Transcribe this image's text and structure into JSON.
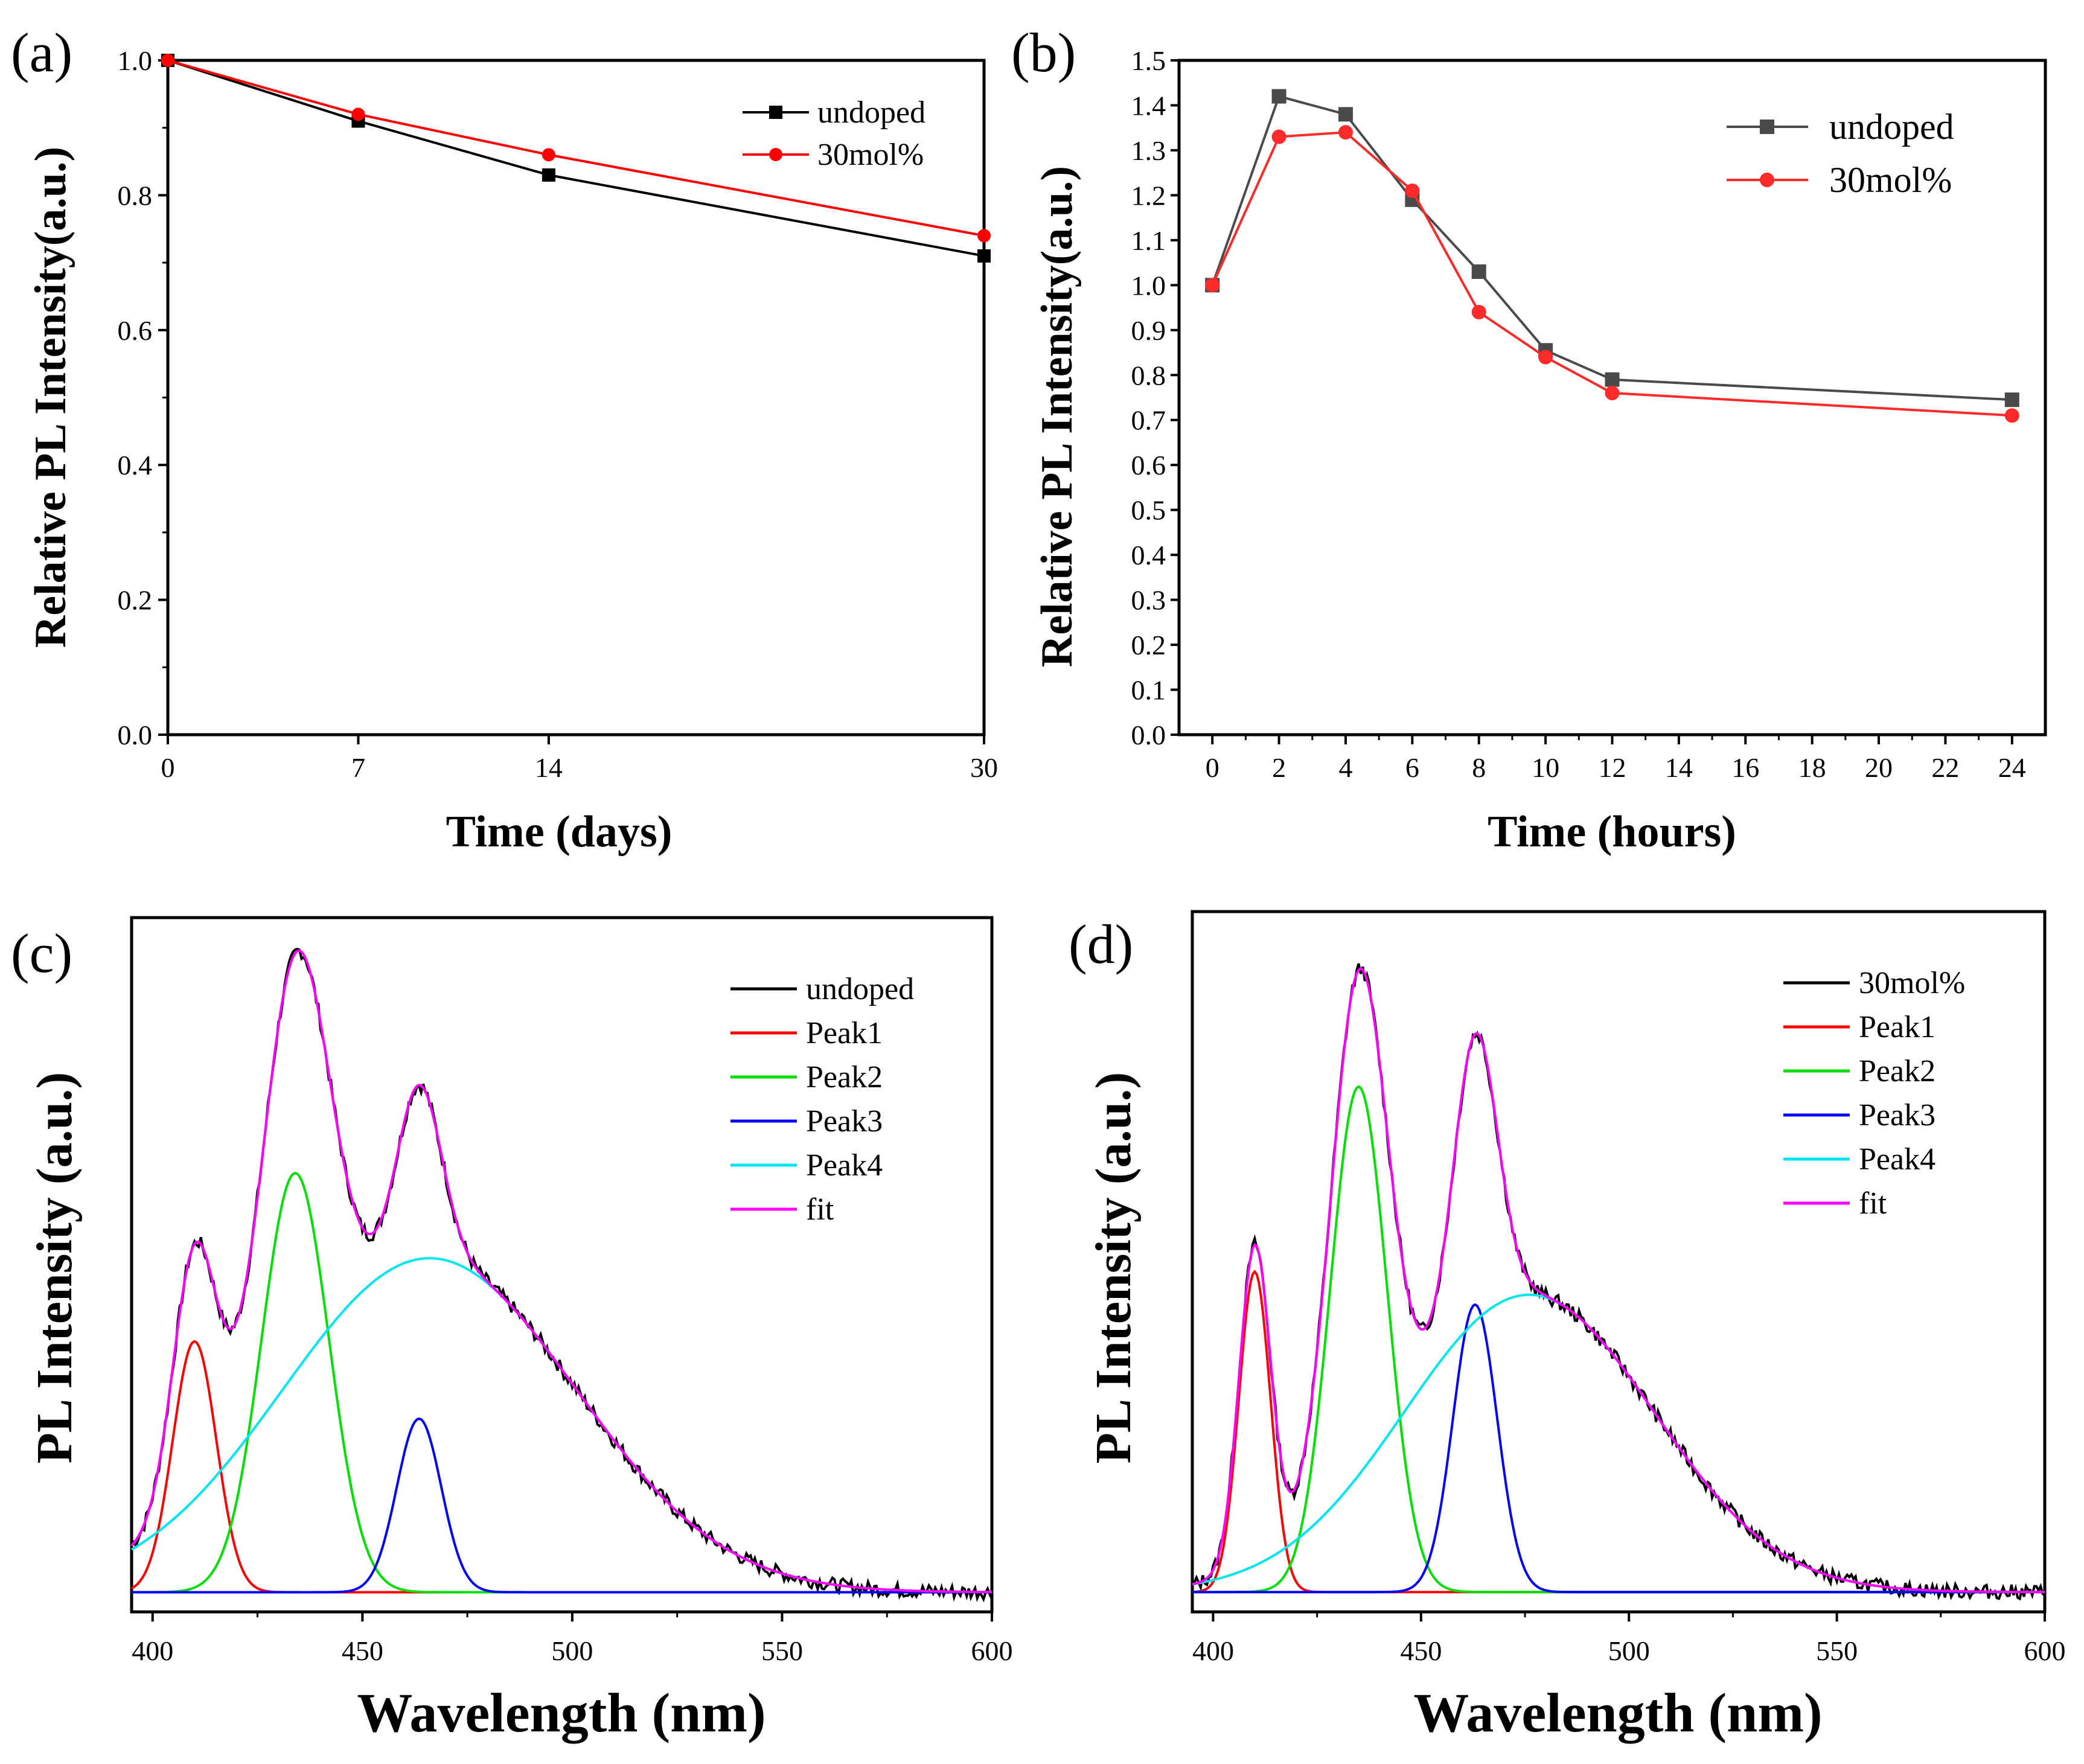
{
  "chart_data": [
    {
      "panel": "(a)",
      "type": "line",
      "xlabel": "Time (days)",
      "ylabel": "Relative PL Intensity(a.u.)",
      "x": [
        0,
        7,
        14,
        30
      ],
      "xticks": [
        "0",
        "7",
        "14",
        "30"
      ],
      "xlim": [
        0,
        30
      ],
      "ylim": [
        0,
        1.0
      ],
      "yticks": [
        "0.0",
        "0.2",
        "0.4",
        "0.6",
        "0.8",
        "1.0"
      ],
      "legend_position": "top-right",
      "series": [
        {
          "name": "undoped",
          "color": "#000000",
          "marker": "square",
          "values": [
            1.0,
            0.91,
            0.83,
            0.71
          ]
        },
        {
          "name": "30mol%",
          "color": "#ff0000",
          "marker": "circle",
          "values": [
            1.0,
            0.92,
            0.86,
            0.74
          ]
        }
      ]
    },
    {
      "panel": "(b)",
      "type": "line",
      "xlabel": "Time (hours)",
      "ylabel": "Relative PL Intensity(a.u.)",
      "x": [
        0,
        2,
        4,
        6,
        8,
        10,
        12,
        24
      ],
      "xticks": [
        "0",
        "2",
        "4",
        "6",
        "8",
        "10",
        "12",
        "14",
        "16",
        "18",
        "20",
        "22",
        "24"
      ],
      "xlim": [
        -1,
        25
      ],
      "ylim": [
        0,
        1.5
      ],
      "yticks": [
        "0.0",
        "0.1",
        "0.2",
        "0.3",
        "0.4",
        "0.5",
        "0.6",
        "0.7",
        "0.8",
        "0.9",
        "1.0",
        "1.1",
        "1.2",
        "1.3",
        "1.4",
        "1.5"
      ],
      "legend_position": "top-right",
      "series": [
        {
          "name": "undoped",
          "color": "#4a4a4a",
          "marker": "square",
          "values": [
            1.0,
            1.42,
            1.38,
            1.19,
            1.03,
            0.855,
            0.79,
            0.745
          ]
        },
        {
          "name": "30mol%",
          "color": "#ff2a2a",
          "marker": "circle",
          "values": [
            1.0,
            1.33,
            1.34,
            1.21,
            0.94,
            0.84,
            0.76,
            0.71
          ]
        }
      ]
    },
    {
      "panel": "(c)",
      "type": "line",
      "xlabel": "Wavelength (nm)",
      "ylabel": "PL Intensity (a.u.)",
      "xlim": [
        395,
        600
      ],
      "ylim": [
        -0.03,
        1.03
      ],
      "xticks": [
        "400",
        "450",
        "500",
        "550",
        "600"
      ],
      "legend_position": "top-right",
      "series": [
        {
          "name": "undoped",
          "color": "#000000"
        },
        {
          "name": "Peak1",
          "color": "#ff0000",
          "center": 410,
          "amplitude": 0.383,
          "sigma": 5.2
        },
        {
          "name": "Peak2",
          "color": "#00dd00",
          "center": 434,
          "amplitude": 0.64,
          "sigma": 8.0
        },
        {
          "name": "Peak3",
          "color": "#0000ff",
          "center": 463.5,
          "amplitude": 0.265,
          "sigma": 5.3
        },
        {
          "name": "Peak4",
          "color": "#00e5ee",
          "center": 466,
          "amplitude": 0.51,
          "sigma": 35
        },
        {
          "name": "fit",
          "color": "#ff00ff"
        }
      ]
    },
    {
      "panel": "(d)",
      "type": "line",
      "xlabel": "Wavelength (nm)",
      "ylabel": "PL Intensity (a.u.)",
      "xlim": [
        395,
        600
      ],
      "ylim": [
        -0.03,
        1.03
      ],
      "xticks": [
        "400",
        "450",
        "500",
        "550",
        "600"
      ],
      "legend_position": "top-right",
      "series": [
        {
          "name": "30mol%",
          "color": "#000000"
        },
        {
          "name": "Peak1",
          "color": "#ff0000",
          "center": 410,
          "amplitude": 0.485,
          "sigma": 3.8
        },
        {
          "name": "Peak2",
          "color": "#00dd00",
          "center": 435,
          "amplitude": 0.765,
          "sigma": 6.8
        },
        {
          "name": "Peak3",
          "color": "#0000ff",
          "center": 463,
          "amplitude": 0.435,
          "sigma": 5.3
        },
        {
          "name": "Peak4",
          "color": "#00e5ee",
          "center": 476,
          "amplitude": 0.45,
          "sigma": 30
        },
        {
          "name": "fit",
          "color": "#ff00ff"
        }
      ]
    }
  ]
}
